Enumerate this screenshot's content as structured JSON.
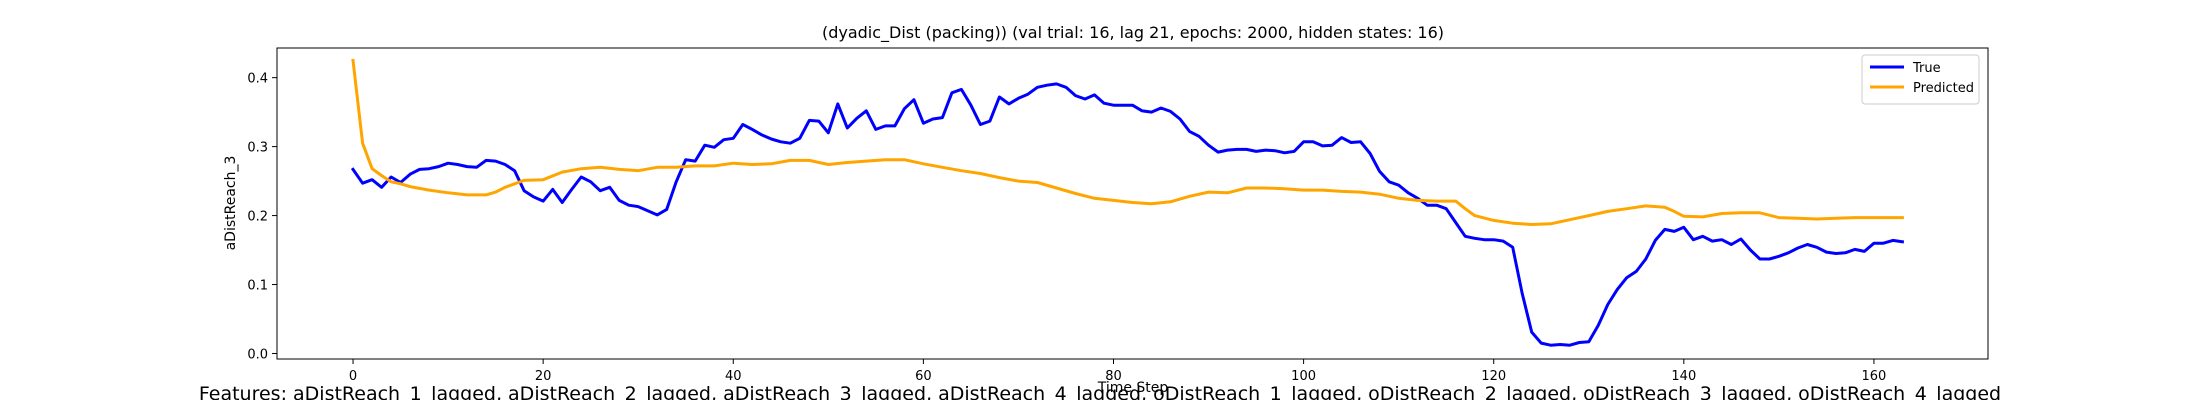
{
  "chart_data": {
    "type": "line",
    "title": "(dyadic_Dist (packing)) (val trial: 16, lag 21, epochs: 2000, hidden states: 16)",
    "xlabel": "Time Step",
    "ylabel": "aDistReach_3",
    "xlim": [
      -8,
      172
    ],
    "ylim": [
      -0.008,
      0.443
    ],
    "xticks": [
      0,
      20,
      40,
      60,
      80,
      100,
      120,
      140,
      160
    ],
    "yticks": [
      0.0,
      0.1,
      0.2,
      0.3,
      0.4
    ],
    "ytick_labels": [
      "0.0",
      "0.1",
      "0.2",
      "0.3",
      "0.4"
    ],
    "grid": false,
    "legend_position": "top-right",
    "series": [
      {
        "name": "True",
        "color": "#0000ff",
        "points": [
          [
            0,
            0.267
          ],
          [
            1,
            0.247
          ],
          [
            2,
            0.252
          ],
          [
            3,
            0.241
          ],
          [
            4,
            0.256
          ],
          [
            5,
            0.248
          ],
          [
            6,
            0.26
          ],
          [
            7,
            0.267
          ],
          [
            8,
            0.268
          ],
          [
            9,
            0.271
          ],
          [
            10,
            0.276
          ],
          [
            11,
            0.274
          ],
          [
            12,
            0.271
          ],
          [
            13,
            0.27
          ],
          [
            14,
            0.28
          ],
          [
            15,
            0.279
          ],
          [
            16,
            0.274
          ],
          [
            17,
            0.265
          ],
          [
            18,
            0.236
          ],
          [
            19,
            0.227
          ],
          [
            20,
            0.221
          ],
          [
            21,
            0.238
          ],
          [
            22,
            0.219
          ],
          [
            23,
            0.238
          ],
          [
            24,
            0.256
          ],
          [
            25,
            0.249
          ],
          [
            26,
            0.236
          ],
          [
            27,
            0.241
          ],
          [
            28,
            0.222
          ],
          [
            29,
            0.215
          ],
          [
            30,
            0.213
          ],
          [
            31,
            0.207
          ],
          [
            32,
            0.201
          ],
          [
            33,
            0.209
          ],
          [
            34,
            0.249
          ],
          [
            35,
            0.281
          ],
          [
            36,
            0.279
          ],
          [
            37,
            0.302
          ],
          [
            38,
            0.299
          ],
          [
            39,
            0.31
          ],
          [
            40,
            0.312
          ],
          [
            41,
            0.332
          ],
          [
            42,
            0.325
          ],
          [
            43,
            0.317
          ],
          [
            44,
            0.311
          ],
          [
            45,
            0.307
          ],
          [
            46,
            0.305
          ],
          [
            47,
            0.312
          ],
          [
            48,
            0.338
          ],
          [
            49,
            0.337
          ],
          [
            50,
            0.32
          ],
          [
            51,
            0.362
          ],
          [
            52,
            0.327
          ],
          [
            53,
            0.341
          ],
          [
            54,
            0.352
          ],
          [
            55,
            0.325
          ],
          [
            56,
            0.33
          ],
          [
            57,
            0.33
          ],
          [
            58,
            0.355
          ],
          [
            59,
            0.368
          ],
          [
            60,
            0.334
          ],
          [
            61,
            0.34
          ],
          [
            62,
            0.342
          ],
          [
            63,
            0.378
          ],
          [
            64,
            0.383
          ],
          [
            65,
            0.36
          ],
          [
            66,
            0.332
          ],
          [
            67,
            0.337
          ],
          [
            68,
            0.372
          ],
          [
            69,
            0.362
          ],
          [
            70,
            0.37
          ],
          [
            71,
            0.376
          ],
          [
            72,
            0.386
          ],
          [
            73,
            0.389
          ],
          [
            74,
            0.391
          ],
          [
            75,
            0.386
          ],
          [
            76,
            0.374
          ],
          [
            77,
            0.369
          ],
          [
            78,
            0.375
          ],
          [
            79,
            0.363
          ],
          [
            80,
            0.36
          ],
          [
            81,
            0.36
          ],
          [
            82,
            0.36
          ],
          [
            83,
            0.352
          ],
          [
            84,
            0.35
          ],
          [
            85,
            0.356
          ],
          [
            86,
            0.351
          ],
          [
            87,
            0.34
          ],
          [
            88,
            0.322
          ],
          [
            89,
            0.315
          ],
          [
            90,
            0.302
          ],
          [
            91,
            0.292
          ],
          [
            92,
            0.295
          ],
          [
            93,
            0.296
          ],
          [
            94,
            0.296
          ],
          [
            95,
            0.293
          ],
          [
            96,
            0.295
          ],
          [
            97,
            0.294
          ],
          [
            98,
            0.291
          ],
          [
            99,
            0.293
          ],
          [
            100,
            0.307
          ],
          [
            101,
            0.307
          ],
          [
            102,
            0.301
          ],
          [
            103,
            0.302
          ],
          [
            104,
            0.313
          ],
          [
            105,
            0.306
          ],
          [
            106,
            0.307
          ],
          [
            107,
            0.29
          ],
          [
            108,
            0.264
          ],
          [
            109,
            0.249
          ],
          [
            110,
            0.244
          ],
          [
            111,
            0.233
          ],
          [
            112,
            0.225
          ],
          [
            113,
            0.215
          ],
          [
            114,
            0.215
          ],
          [
            115,
            0.21
          ],
          [
            116,
            0.19
          ],
          [
            117,
            0.17
          ],
          [
            118,
            0.167
          ],
          [
            119,
            0.165
          ],
          [
            120,
            0.165
          ],
          [
            121,
            0.163
          ],
          [
            122,
            0.154
          ],
          [
            123,
            0.087
          ],
          [
            124,
            0.031
          ],
          [
            125,
            0.015
          ],
          [
            126,
            0.012
          ],
          [
            127,
            0.013
          ],
          [
            128,
            0.012
          ],
          [
            129,
            0.016
          ],
          [
            130,
            0.017
          ],
          [
            131,
            0.041
          ],
          [
            132,
            0.071
          ],
          [
            133,
            0.093
          ],
          [
            134,
            0.11
          ],
          [
            135,
            0.119
          ],
          [
            136,
            0.137
          ],
          [
            137,
            0.164
          ],
          [
            138,
            0.18
          ],
          [
            139,
            0.177
          ],
          [
            140,
            0.183
          ],
          [
            141,
            0.165
          ],
          [
            142,
            0.17
          ],
          [
            143,
            0.163
          ],
          [
            144,
            0.165
          ],
          [
            145,
            0.158
          ],
          [
            146,
            0.166
          ],
          [
            147,
            0.15
          ],
          [
            148,
            0.137
          ],
          [
            149,
            0.137
          ],
          [
            150,
            0.141
          ],
          [
            151,
            0.146
          ],
          [
            152,
            0.153
          ],
          [
            153,
            0.158
          ],
          [
            154,
            0.154
          ],
          [
            155,
            0.147
          ],
          [
            156,
            0.145
          ],
          [
            157,
            0.146
          ],
          [
            158,
            0.151
          ],
          [
            159,
            0.148
          ],
          [
            160,
            0.16
          ],
          [
            161,
            0.16
          ],
          [
            162,
            0.164
          ],
          [
            163,
            0.162
          ]
        ]
      },
      {
        "name": "Predicted",
        "color": "#ffa500",
        "points": [
          [
            0,
            0.425
          ],
          [
            1,
            0.305
          ],
          [
            2,
            0.268
          ],
          [
            3,
            0.258
          ],
          [
            4,
            0.249
          ],
          [
            5,
            0.246
          ],
          [
            6,
            0.242
          ],
          [
            8,
            0.237
          ],
          [
            10,
            0.233
          ],
          [
            12,
            0.23
          ],
          [
            14,
            0.23
          ],
          [
            15,
            0.234
          ],
          [
            16,
            0.241
          ],
          [
            17,
            0.246
          ],
          [
            18,
            0.251
          ],
          [
            20,
            0.252
          ],
          [
            22,
            0.263
          ],
          [
            24,
            0.268
          ],
          [
            26,
            0.27
          ],
          [
            28,
            0.267
          ],
          [
            30,
            0.265
          ],
          [
            32,
            0.27
          ],
          [
            34,
            0.27
          ],
          [
            36,
            0.272
          ],
          [
            38,
            0.272
          ],
          [
            40,
            0.276
          ],
          [
            42,
            0.274
          ],
          [
            44,
            0.275
          ],
          [
            46,
            0.28
          ],
          [
            48,
            0.28
          ],
          [
            50,
            0.274
          ],
          [
            52,
            0.277
          ],
          [
            54,
            0.279
          ],
          [
            56,
            0.281
          ],
          [
            58,
            0.281
          ],
          [
            60,
            0.275
          ],
          [
            62,
            0.27
          ],
          [
            64,
            0.265
          ],
          [
            66,
            0.261
          ],
          [
            68,
            0.255
          ],
          [
            70,
            0.25
          ],
          [
            72,
            0.248
          ],
          [
            74,
            0.24
          ],
          [
            76,
            0.232
          ],
          [
            78,
            0.225
          ],
          [
            80,
            0.222
          ],
          [
            82,
            0.219
          ],
          [
            84,
            0.217
          ],
          [
            86,
            0.22
          ],
          [
            88,
            0.228
          ],
          [
            90,
            0.234
          ],
          [
            92,
            0.233
          ],
          [
            94,
            0.24
          ],
          [
            96,
            0.24
          ],
          [
            98,
            0.239
          ],
          [
            100,
            0.237
          ],
          [
            102,
            0.237
          ],
          [
            104,
            0.235
          ],
          [
            106,
            0.234
          ],
          [
            108,
            0.231
          ],
          [
            110,
            0.225
          ],
          [
            112,
            0.222
          ],
          [
            114,
            0.221
          ],
          [
            116,
            0.221
          ],
          [
            117,
            0.21
          ],
          [
            118,
            0.2
          ],
          [
            120,
            0.193
          ],
          [
            122,
            0.189
          ],
          [
            124,
            0.187
          ],
          [
            126,
            0.188
          ],
          [
            128,
            0.194
          ],
          [
            130,
            0.2
          ],
          [
            132,
            0.206
          ],
          [
            134,
            0.21
          ],
          [
            136,
            0.214
          ],
          [
            138,
            0.212
          ],
          [
            139,
            0.206
          ],
          [
            140,
            0.199
          ],
          [
            142,
            0.198
          ],
          [
            144,
            0.203
          ],
          [
            146,
            0.204
          ],
          [
            148,
            0.204
          ],
          [
            150,
            0.197
          ],
          [
            152,
            0.196
          ],
          [
            154,
            0.195
          ],
          [
            156,
            0.196
          ],
          [
            158,
            0.197
          ],
          [
            160,
            0.197
          ],
          [
            162,
            0.197
          ],
          [
            163,
            0.197
          ]
        ]
      }
    ],
    "features_caption": "Features: aDistReach_1_lagged, aDistReach_2_lagged, aDistReach_3_lagged, aDistReach_4_lagged, oDistReach_1_lagged, oDistReach_2_lagged, oDistReach_3_lagged, oDistReach_4_lagged"
  }
}
